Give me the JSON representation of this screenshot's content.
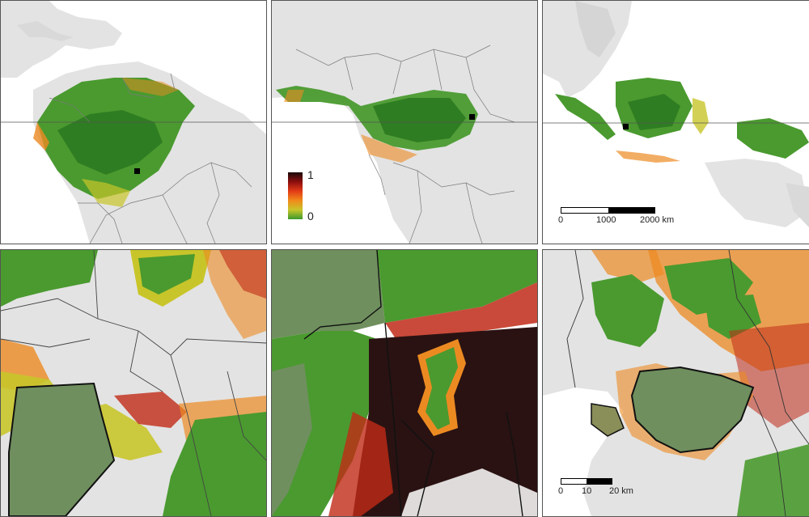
{
  "legend": {
    "max_label": "1",
    "min_label": "0",
    "colors": [
      "#1a0a0a",
      "#8b0e0e",
      "#e23b16",
      "#f08a1a",
      "#c8c52a",
      "#3c9a2c"
    ]
  },
  "scalebar_large": {
    "t0": "0",
    "t1": "1000",
    "t2": "2000 km"
  },
  "scalebar_small": {
    "t0": "0",
    "t1": "10",
    "t2": "20 km"
  },
  "colors": {
    "land": "#e3e3e3",
    "forest": "#4a9a2f",
    "forest_dark": "#2f7d22",
    "edge_orange": "#ec8a22",
    "edge_red": "#c02a17",
    "deforest": "#2a1212",
    "border": "#7a7a7a",
    "protected": "#6f8f5e"
  }
}
